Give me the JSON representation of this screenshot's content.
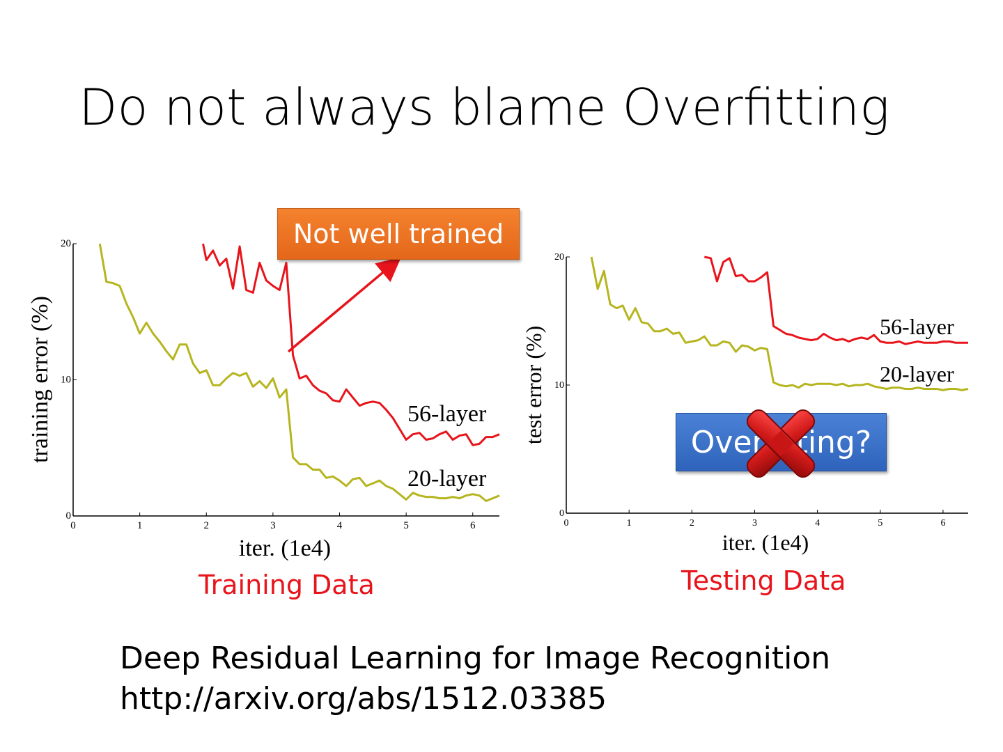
{
  "slide": {
    "title": "Do not always blame Overfitting",
    "reference_title": "Deep Residual Learning for Image Recognition",
    "reference_url": "http://arxiv.org/abs/1512.03385"
  },
  "annotations": {
    "not_well_trained": "Not well trained",
    "overfitting": "Overfitting?",
    "training_caption": "Training Data",
    "testing_caption": "Testing Data",
    "cross_icon": "red-x-icon",
    "colors": {
      "series_56": "#e8141b",
      "series_20": "#b5b51f",
      "caption": "#e8141b",
      "orange_box": "#f07825",
      "blue_box": "#3a6fc8"
    }
  },
  "chart_data": [
    {
      "type": "line",
      "title": "",
      "xlabel": "iter. (1e4)",
      "ylabel": "training error (%)",
      "xlim": [
        0,
        6.4
      ],
      "ylim": [
        0,
        20
      ],
      "xticks": [
        "0",
        "1",
        "2",
        "3",
        "4",
        "5",
        "6"
      ],
      "yticks": [
        "0",
        "10",
        "20"
      ],
      "series": [
        {
          "name": "56-layer",
          "color": "#e8141b",
          "x": [
            1.95,
            2.0,
            2.1,
            2.2,
            2.3,
            2.4,
            2.5,
            2.6,
            2.7,
            2.8,
            2.9,
            3.0,
            3.1,
            3.2,
            3.3,
            3.4,
            3.5,
            3.6,
            3.7,
            3.8,
            3.9,
            4.0,
            4.1,
            4.2,
            4.3,
            4.4,
            4.5,
            4.6,
            4.7,
            4.8,
            4.9,
            5.0,
            5.1,
            5.2,
            5.3,
            5.4,
            5.5,
            5.6,
            5.7,
            5.8,
            5.9,
            6.0,
            6.1,
            6.2,
            6.3,
            6.4
          ],
          "y": [
            20.0,
            18.8,
            19.5,
            18.4,
            18.9,
            16.7,
            19.8,
            16.6,
            16.4,
            18.6,
            17.3,
            16.9,
            16.6,
            18.6,
            11.8,
            10.1,
            10.3,
            9.6,
            9.2,
            9.0,
            8.5,
            8.4,
            9.3,
            8.7,
            8.1,
            8.3,
            8.4,
            8.3,
            7.8,
            7.2,
            6.4,
            5.6,
            6.0,
            6.1,
            5.6,
            5.7,
            6.0,
            6.2,
            5.6,
            5.9,
            6.0,
            5.2,
            5.3,
            5.8,
            5.8,
            6.0
          ]
        },
        {
          "name": "20-layer",
          "color": "#b5b51f",
          "x": [
            0.4,
            0.5,
            0.6,
            0.7,
            0.8,
            0.9,
            1.0,
            1.1,
            1.2,
            1.3,
            1.4,
            1.5,
            1.6,
            1.7,
            1.8,
            1.9,
            2.0,
            2.1,
            2.2,
            2.3,
            2.4,
            2.5,
            2.6,
            2.7,
            2.8,
            2.9,
            3.0,
            3.1,
            3.2,
            3.3,
            3.4,
            3.5,
            3.6,
            3.7,
            3.8,
            3.9,
            4.0,
            4.1,
            4.2,
            4.3,
            4.4,
            4.5,
            4.6,
            4.7,
            4.8,
            4.9,
            5.0,
            5.1,
            5.2,
            5.3,
            5.4,
            5.5,
            5.6,
            5.7,
            5.8,
            5.9,
            6.0,
            6.1,
            6.2,
            6.3,
            6.4
          ],
          "y": [
            20.0,
            17.2,
            17.1,
            16.9,
            15.6,
            14.6,
            13.4,
            14.2,
            13.4,
            12.8,
            12.1,
            11.5,
            12.6,
            12.6,
            11.2,
            10.5,
            10.7,
            9.6,
            9.6,
            10.1,
            10.5,
            10.3,
            10.5,
            9.5,
            9.9,
            9.4,
            10.1,
            8.7,
            9.3,
            4.3,
            3.8,
            3.8,
            3.4,
            3.4,
            2.8,
            2.9,
            2.6,
            2.2,
            2.7,
            2.8,
            2.2,
            2.4,
            2.6,
            2.2,
            2.0,
            1.6,
            1.2,
            1.7,
            1.5,
            1.4,
            1.4,
            1.3,
            1.3,
            1.4,
            1.3,
            1.5,
            1.6,
            1.5,
            1.1,
            1.3,
            1.5
          ]
        }
      ]
    },
    {
      "type": "line",
      "title": "",
      "xlabel": "iter. (1e4)",
      "ylabel": "test error (%)",
      "xlim": [
        0,
        6.4
      ],
      "ylim": [
        0,
        20
      ],
      "xticks": [
        "0",
        "1",
        "2",
        "3",
        "4",
        "5",
        "6"
      ],
      "yticks": [
        "0",
        "10",
        "20"
      ],
      "series": [
        {
          "name": "56-layer",
          "color": "#e8141b",
          "x": [
            2.2,
            2.3,
            2.4,
            2.5,
            2.6,
            2.7,
            2.8,
            2.9,
            3.0,
            3.1,
            3.2,
            3.3,
            3.4,
            3.5,
            3.6,
            3.7,
            3.8,
            3.9,
            4.0,
            4.1,
            4.2,
            4.3,
            4.4,
            4.5,
            4.6,
            4.7,
            4.8,
            4.9,
            5.0,
            5.1,
            5.2,
            5.3,
            5.4,
            5.5,
            5.6,
            5.7,
            5.8,
            5.9,
            6.0,
            6.1,
            6.2,
            6.3,
            6.4
          ],
          "y": [
            20.0,
            19.9,
            18.1,
            19.6,
            19.9,
            18.5,
            18.6,
            18.1,
            18.1,
            18.4,
            18.8,
            14.6,
            14.3,
            14.0,
            13.9,
            13.7,
            13.6,
            13.5,
            13.6,
            14.0,
            13.7,
            13.5,
            13.6,
            13.4,
            13.6,
            13.7,
            13.6,
            13.9,
            13.4,
            13.3,
            13.3,
            13.4,
            13.2,
            13.3,
            13.4,
            13.3,
            13.3,
            13.3,
            13.4,
            13.4,
            13.3,
            13.3,
            13.3
          ]
        },
        {
          "name": "20-layer",
          "color": "#b5b51f",
          "x": [
            0.4,
            0.5,
            0.6,
            0.7,
            0.8,
            0.9,
            1.0,
            1.1,
            1.2,
            1.3,
            1.4,
            1.5,
            1.6,
            1.7,
            1.8,
            1.9,
            2.0,
            2.1,
            2.2,
            2.3,
            2.4,
            2.5,
            2.6,
            2.7,
            2.8,
            2.9,
            3.0,
            3.1,
            3.2,
            3.3,
            3.4,
            3.5,
            3.6,
            3.7,
            3.8,
            3.9,
            4.0,
            4.1,
            4.2,
            4.3,
            4.4,
            4.5,
            4.6,
            4.7,
            4.8,
            4.9,
            5.0,
            5.1,
            5.2,
            5.3,
            5.4,
            5.5,
            5.6,
            5.7,
            5.8,
            5.9,
            6.0,
            6.1,
            6.2,
            6.3,
            6.4
          ],
          "y": [
            20.0,
            17.5,
            18.9,
            16.3,
            16.0,
            16.2,
            15.1,
            16.0,
            14.9,
            14.8,
            14.2,
            14.2,
            14.4,
            14.0,
            14.1,
            13.3,
            13.4,
            13.5,
            13.8,
            13.1,
            13.1,
            13.4,
            13.3,
            12.6,
            13.1,
            13.0,
            12.7,
            12.9,
            12.8,
            10.2,
            10.0,
            9.9,
            10.0,
            9.8,
            10.1,
            10.0,
            10.1,
            10.1,
            10.1,
            10.0,
            10.1,
            9.9,
            10.0,
            10.0,
            10.1,
            9.9,
            9.8,
            9.7,
            9.8,
            9.8,
            9.7,
            9.7,
            9.8,
            9.7,
            9.7,
            9.7,
            9.6,
            9.7,
            9.7,
            9.6,
            9.7
          ]
        }
      ]
    }
  ]
}
